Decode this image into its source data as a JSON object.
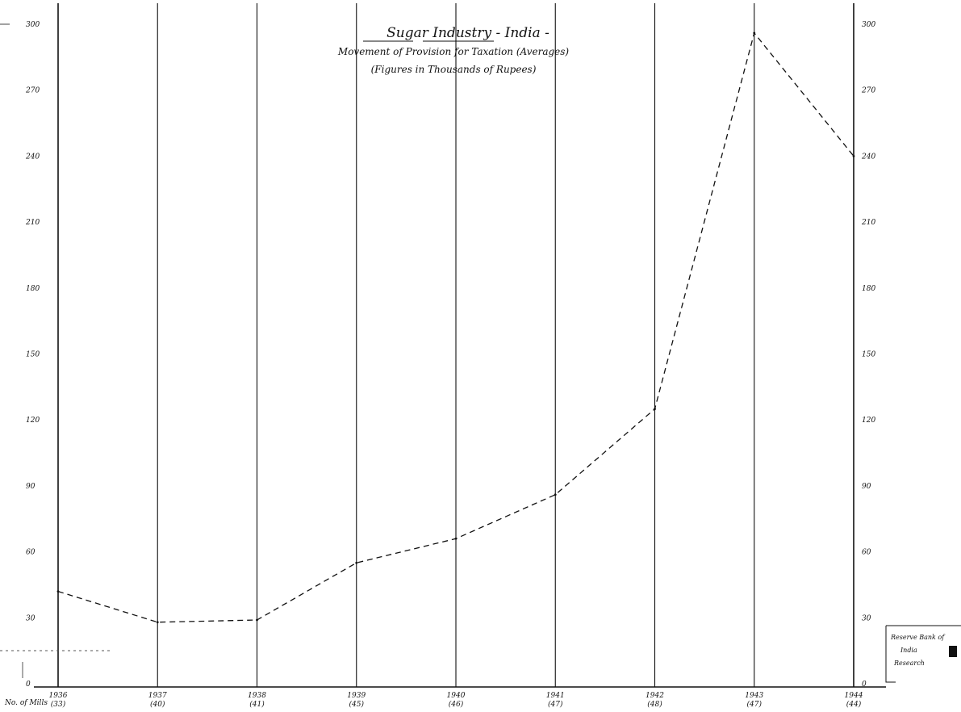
{
  "chart_data": {
    "type": "line",
    "title": "Sugar Industry - India -",
    "subtitle": "Movement of Provision for Taxation (Averages)",
    "note": "(Figures in Thousands of Rupees)",
    "xlabel": "",
    "ylabel": "",
    "ylim": [
      0,
      300
    ],
    "y_ticks": [
      0,
      30,
      60,
      90,
      120,
      150,
      180,
      210,
      240,
      270,
      300
    ],
    "y_tick_labels_left": [
      "0",
      "30",
      "60",
      "90",
      "120",
      "150",
      "180",
      "210",
      "240",
      "270",
      "300"
    ],
    "y_tick_labels_right": [
      "0",
      "30",
      "60",
      "90",
      "120",
      "150",
      "180",
      "210",
      "240",
      "270",
      "300"
    ],
    "x_axis_prefix": "No. of Mills",
    "categories": [
      {
        "year": "1936",
        "mills": "(33)"
      },
      {
        "year": "1937",
        "mills": "(40)"
      },
      {
        "year": "1938",
        "mills": "(41)"
      },
      {
        "year": "1939",
        "mills": "(45)"
      },
      {
        "year": "1940",
        "mills": "(46)"
      },
      {
        "year": "1941",
        "mills": "(47)"
      },
      {
        "year": "1942",
        "mills": "(48)"
      },
      {
        "year": "1943",
        "mills": "(47)"
      },
      {
        "year": "1944",
        "mills": "(44)"
      }
    ],
    "series": [
      {
        "values": [
          42,
          28,
          29,
          55,
          66,
          86,
          125,
          296,
          240
        ],
        "style": "dashed",
        "color": "#111111"
      }
    ],
    "grid": "vertical lines at each year",
    "stamp": [
      "Reserve Bank of",
      "India",
      "Research"
    ]
  }
}
